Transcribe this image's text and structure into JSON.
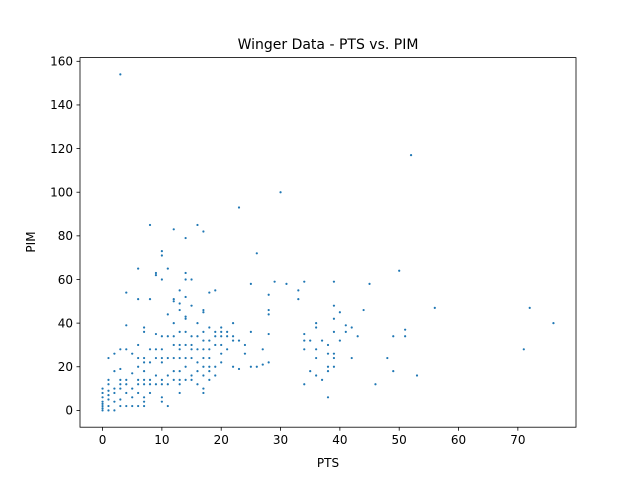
{
  "chart_data": {
    "type": "scatter",
    "title": "Winger Data - PTS vs. PIM",
    "xlabel": "PTS",
    "ylabel": "PIM",
    "xlim": [
      -3.8,
      79.8
    ],
    "ylim": [
      -7.7,
      161.7
    ],
    "xticks": [
      0,
      10,
      20,
      30,
      40,
      50,
      60,
      70
    ],
    "yticks": [
      0,
      20,
      40,
      60,
      80,
      100,
      120,
      140,
      160
    ],
    "grid": false,
    "marker_color": "#1f77b4",
    "points": [
      [
        0,
        0
      ],
      [
        0,
        1
      ],
      [
        0,
        2
      ],
      [
        0,
        3
      ],
      [
        0,
        4
      ],
      [
        0,
        6
      ],
      [
        0,
        8
      ],
      [
        0,
        10
      ],
      [
        1,
        0
      ],
      [
        1,
        2
      ],
      [
        1,
        5
      ],
      [
        1,
        7
      ],
      [
        1,
        9
      ],
      [
        1,
        12
      ],
      [
        1,
        14
      ],
      [
        1,
        24
      ],
      [
        2,
        0
      ],
      [
        2,
        4
      ],
      [
        2,
        8
      ],
      [
        2,
        10
      ],
      [
        2,
        18
      ],
      [
        2,
        26
      ],
      [
        3,
        2
      ],
      [
        3,
        5
      ],
      [
        3,
        10
      ],
      [
        3,
        12
      ],
      [
        3,
        14
      ],
      [
        3,
        19
      ],
      [
        3,
        28
      ],
      [
        3,
        154
      ],
      [
        4,
        2
      ],
      [
        4,
        8
      ],
      [
        4,
        12
      ],
      [
        4,
        14
      ],
      [
        4,
        39
      ],
      [
        4,
        54
      ],
      [
        4,
        28
      ],
      [
        5,
        2
      ],
      [
        5,
        6
      ],
      [
        5,
        10
      ],
      [
        5,
        17
      ],
      [
        5,
        26
      ],
      [
        6,
        2
      ],
      [
        6,
        8
      ],
      [
        6,
        12
      ],
      [
        6,
        14
      ],
      [
        6,
        20
      ],
      [
        6,
        24
      ],
      [
        6,
        30
      ],
      [
        6,
        51
      ],
      [
        6,
        65
      ],
      [
        7,
        2
      ],
      [
        7,
        4
      ],
      [
        7,
        6
      ],
      [
        7,
        12
      ],
      [
        7,
        14
      ],
      [
        7,
        18
      ],
      [
        7,
        22
      ],
      [
        7,
        24
      ],
      [
        7,
        36
      ],
      [
        7,
        38
      ],
      [
        8,
        8
      ],
      [
        8,
        12
      ],
      [
        8,
        14
      ],
      [
        8,
        22
      ],
      [
        8,
        28
      ],
      [
        8,
        51
      ],
      [
        8,
        85
      ],
      [
        9,
        12
      ],
      [
        9,
        16
      ],
      [
        9,
        24
      ],
      [
        9,
        28
      ],
      [
        9,
        35
      ],
      [
        9,
        62
      ],
      [
        9,
        63
      ],
      [
        10,
        4
      ],
      [
        10,
        6
      ],
      [
        10,
        12
      ],
      [
        10,
        14
      ],
      [
        10,
        22
      ],
      [
        10,
        24
      ],
      [
        10,
        28
      ],
      [
        10,
        34
      ],
      [
        10,
        60
      ],
      [
        10,
        71
      ],
      [
        10,
        73
      ],
      [
        11,
        2
      ],
      [
        11,
        12
      ],
      [
        11,
        16
      ],
      [
        11,
        24
      ],
      [
        11,
        34
      ],
      [
        11,
        44
      ],
      [
        11,
        65
      ],
      [
        12,
        14
      ],
      [
        12,
        18
      ],
      [
        12,
        24
      ],
      [
        12,
        30
      ],
      [
        12,
        34
      ],
      [
        12,
        40
      ],
      [
        12,
        50
      ],
      [
        12,
        51
      ],
      [
        12,
        83
      ],
      [
        13,
        8
      ],
      [
        13,
        12
      ],
      [
        13,
        14
      ],
      [
        13,
        18
      ],
      [
        13,
        24
      ],
      [
        13,
        28
      ],
      [
        13,
        30
      ],
      [
        13,
        36
      ],
      [
        13,
        46
      ],
      [
        13,
        49
      ],
      [
        13,
        55
      ],
      [
        14,
        14
      ],
      [
        14,
        20
      ],
      [
        14,
        24
      ],
      [
        14,
        30
      ],
      [
        14,
        36
      ],
      [
        14,
        42
      ],
      [
        14,
        43
      ],
      [
        14,
        52
      ],
      [
        14,
        60
      ],
      [
        14,
        63
      ],
      [
        14,
        79
      ],
      [
        15,
        14
      ],
      [
        15,
        16
      ],
      [
        15,
        24
      ],
      [
        15,
        28
      ],
      [
        15,
        30
      ],
      [
        15,
        34
      ],
      [
        15,
        48
      ],
      [
        15,
        60
      ],
      [
        16,
        12
      ],
      [
        16,
        18
      ],
      [
        16,
        22
      ],
      [
        16,
        28
      ],
      [
        16,
        34
      ],
      [
        16,
        40
      ],
      [
        16,
        85
      ],
      [
        17,
        8
      ],
      [
        17,
        10
      ],
      [
        17,
        16
      ],
      [
        17,
        20
      ],
      [
        17,
        24
      ],
      [
        17,
        28
      ],
      [
        17,
        32
      ],
      [
        17,
        36
      ],
      [
        17,
        45
      ],
      [
        17,
        46
      ],
      [
        17,
        82
      ],
      [
        18,
        14
      ],
      [
        18,
        18
      ],
      [
        18,
        20
      ],
      [
        18,
        24
      ],
      [
        18,
        28
      ],
      [
        18,
        32
      ],
      [
        18,
        38
      ],
      [
        18,
        54
      ],
      [
        19,
        16
      ],
      [
        19,
        20
      ],
      [
        19,
        30
      ],
      [
        19,
        34
      ],
      [
        19,
        36
      ],
      [
        19,
        55
      ],
      [
        20,
        22
      ],
      [
        20,
        26
      ],
      [
        20,
        30
      ],
      [
        20,
        34
      ],
      [
        20,
        36
      ],
      [
        20,
        38
      ],
      [
        21,
        28
      ],
      [
        21,
        34
      ],
      [
        21,
        36
      ],
      [
        22,
        20
      ],
      [
        22,
        32
      ],
      [
        22,
        34
      ],
      [
        22,
        40
      ],
      [
        23,
        19
      ],
      [
        23,
        32
      ],
      [
        23,
        93
      ],
      [
        24,
        26
      ],
      [
        24,
        30
      ],
      [
        25,
        20
      ],
      [
        25,
        36
      ],
      [
        25,
        58
      ],
      [
        26,
        20
      ],
      [
        26,
        72
      ],
      [
        27,
        21
      ],
      [
        27,
        28
      ],
      [
        28,
        22
      ],
      [
        28,
        35
      ],
      [
        28,
        44
      ],
      [
        28,
        46
      ],
      [
        28,
        53
      ],
      [
        29,
        59
      ],
      [
        30,
        100
      ],
      [
        31,
        58
      ],
      [
        33,
        51
      ],
      [
        33,
        55
      ],
      [
        34,
        12
      ],
      [
        34,
        28
      ],
      [
        34,
        32
      ],
      [
        34,
        35
      ],
      [
        34,
        59
      ],
      [
        35,
        18
      ],
      [
        35,
        32
      ],
      [
        36,
        16
      ],
      [
        36,
        24
      ],
      [
        36,
        28
      ],
      [
        36,
        38
      ],
      [
        36,
        40
      ],
      [
        37,
        14
      ],
      [
        37,
        32
      ],
      [
        38,
        6
      ],
      [
        38,
        18
      ],
      [
        38,
        20
      ],
      [
        38,
        26
      ],
      [
        38,
        30
      ],
      [
        39,
        20
      ],
      [
        39,
        24
      ],
      [
        39,
        26
      ],
      [
        39,
        36
      ],
      [
        39,
        42
      ],
      [
        39,
        48
      ],
      [
        39,
        59
      ],
      [
        40,
        32
      ],
      [
        40,
        45
      ],
      [
        41,
        36
      ],
      [
        41,
        39
      ],
      [
        42,
        24
      ],
      [
        42,
        38
      ],
      [
        43,
        34
      ],
      [
        44,
        46
      ],
      [
        45,
        58
      ],
      [
        46,
        12
      ],
      [
        48,
        24
      ],
      [
        49,
        18
      ],
      [
        49,
        34
      ],
      [
        50,
        64
      ],
      [
        51,
        34
      ],
      [
        51,
        37
      ],
      [
        52,
        117
      ],
      [
        53,
        16
      ],
      [
        56,
        47
      ],
      [
        71,
        28
      ],
      [
        72,
        47
      ],
      [
        76,
        40
      ]
    ]
  }
}
